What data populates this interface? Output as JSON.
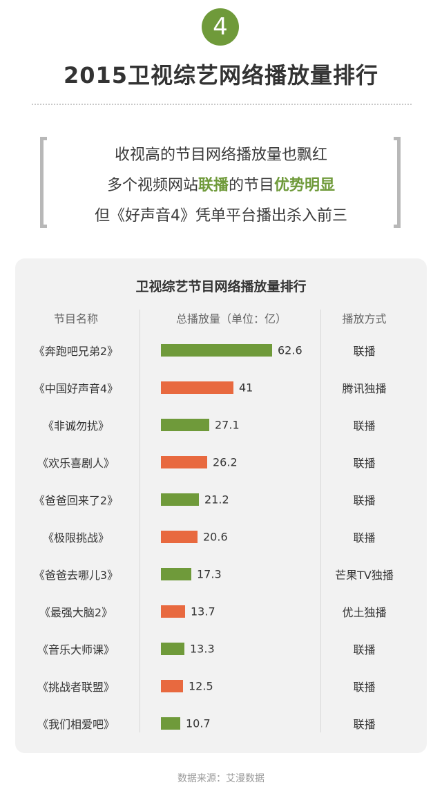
{
  "header": {
    "badge_number": "4",
    "title": "2015卫视综艺网络播放量排行"
  },
  "quote": {
    "line1": "收视高的节目网络播放量也飘红",
    "line2_a": "多个视频网站",
    "line2_b": "联播",
    "line2_c": "的节目",
    "line2_d": "优势明显",
    "line3": "但《好声音4》凭单平台播出杀入前三"
  },
  "chart_data": {
    "type": "bar",
    "orientation": "horizontal",
    "title": "卫视综艺节目网络播放量排行",
    "columns": [
      "节目名称",
      "总播放量（单位：亿）",
      "播放方式"
    ],
    "categories": [
      "《奔跑吧兄弟2》",
      "《中国好声音4》",
      "《非诚勿扰》",
      "《欢乐喜剧人》",
      "《爸爸回来了2》",
      "《极限挑战》",
      "《爸爸去哪儿3》",
      "《最强大脑2》",
      "《音乐大师课》",
      "《挑战者联盟》",
      "《我们相爱吧》"
    ],
    "values": [
      62.6,
      41,
      27.1,
      26.2,
      21.2,
      20.6,
      17.3,
      13.7,
      13.3,
      12.5,
      10.7
    ],
    "value_labels": [
      "62.6",
      "41",
      "27.1",
      "26.2",
      "21.2",
      "20.6",
      "17.3",
      "13.7",
      "13.3",
      "12.5",
      "10.7"
    ],
    "modes": [
      "联播",
      "腾讯独播",
      "联播",
      "联播",
      "联播",
      "联播",
      "芒果TV独播",
      "优土独播",
      "联播",
      "联播",
      "联播"
    ],
    "bar_colors": [
      "#6f9a3a",
      "#e8693f",
      "#6f9a3a",
      "#e8693f",
      "#6f9a3a",
      "#e8693f",
      "#6f9a3a",
      "#e8693f",
      "#6f9a3a",
      "#e8693f",
      "#6f9a3a"
    ],
    "xlim": [
      0,
      62.6
    ],
    "grid": false
  },
  "colors": {
    "accent_green": "#6f9a3a",
    "accent_orange": "#e8693f"
  },
  "footer": {
    "source": "数据来源：艾漫数据"
  }
}
